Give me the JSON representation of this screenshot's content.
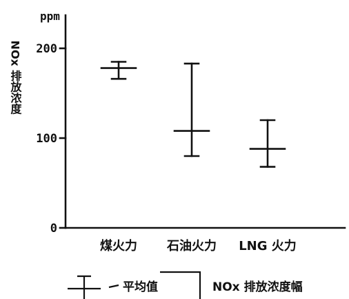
{
  "chart_data": {
    "type": "errorbar",
    "unit": "ppm",
    "ylabel": "NOx 排放浓度",
    "ylim": [
      0,
      210
    ],
    "yticks": [
      {
        "value": 0,
        "label": "0"
      },
      {
        "value": 100,
        "label": "100"
      },
      {
        "value": 200,
        "label": "200"
      }
    ],
    "categories": [
      "煤火力",
      "石油火力",
      "LNG 火力"
    ],
    "series": [
      {
        "values": [
          {
            "category": "煤火力",
            "min": 166,
            "max": 185,
            "mean": 178
          },
          {
            "category": "石油火力",
            "min": 80,
            "max": 183,
            "mean": 108
          },
          {
            "category": "LNG 火力",
            "min": 68,
            "max": 120,
            "mean": 88
          }
        ]
      }
    ],
    "legend": {
      "position": "bottom",
      "mean_label": "平均值",
      "range_label": "NOx 排放浓度幅"
    }
  }
}
